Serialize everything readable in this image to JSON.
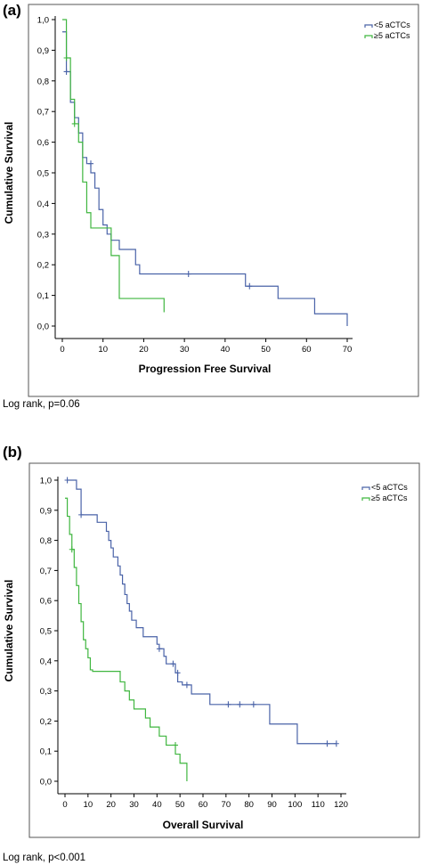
{
  "panels": {
    "a": {
      "label": "(a)",
      "note": "Log rank, p=0.06"
    },
    "b": {
      "label": "(b)",
      "note": "Log rank, p<0.001"
    }
  },
  "colors": {
    "low": "#4a63a8",
    "high": "#3fb63f",
    "axis": "#000000",
    "frame": "#555555"
  },
  "chart_data": [
    {
      "type": "line",
      "title": "",
      "xlabel": "Progression Free Survival",
      "ylabel": "Cumulative Survival",
      "xlim": [
        0,
        70
      ],
      "ylim": [
        0,
        1
      ],
      "xticks": [
        "0",
        "10",
        "20",
        "30",
        "40",
        "50",
        "60",
        "70"
      ],
      "yticks": [
        "0,0",
        "0,1",
        "0,2",
        "0,3",
        "0,4",
        "0,5",
        "0,6",
        "0,7",
        "0,8",
        "0,9",
        "1,0"
      ],
      "legend": "top-right",
      "series": [
        {
          "name": "<5 aCTCs",
          "x": [
            0,
            1,
            2,
            3,
            4,
            5,
            6,
            7,
            8,
            9,
            10,
            11,
            12,
            14,
            15,
            18,
            19,
            45,
            53,
            62,
            70
          ],
          "y": [
            0.96,
            0.83,
            0.73,
            0.68,
            0.63,
            0.55,
            0.53,
            0.5,
            0.45,
            0.38,
            0.33,
            0.3,
            0.28,
            0.25,
            0.25,
            0.2,
            0.17,
            0.13,
            0.09,
            0.04,
            0.0
          ],
          "censored": [
            [
              1,
              0.83
            ],
            [
              7,
              0.53
            ],
            [
              31,
              0.17
            ],
            [
              46,
              0.13
            ]
          ]
        },
        {
          "name": "≥5 aCTCs",
          "x": [
            0,
            1,
            2,
            3,
            4,
            5,
            6,
            7,
            12,
            14,
            25
          ],
          "y": [
            1.0,
            0.875,
            0.74,
            0.66,
            0.6,
            0.47,
            0.37,
            0.32,
            0.23,
            0.09,
            0.045
          ],
          "censored": [
            [
              1,
              0.875
            ],
            [
              3,
              0.66
            ]
          ]
        }
      ]
    },
    {
      "type": "line",
      "title": "",
      "xlabel": "Overall Survival",
      "ylabel": "Cumulative Survival",
      "xlim": [
        0,
        120
      ],
      "ylim": [
        0,
        1
      ],
      "xticks": [
        "0",
        "10",
        "20",
        "30",
        "40",
        "50",
        "60",
        "70",
        "80",
        "90",
        "100",
        "110",
        "120"
      ],
      "yticks": [
        "0,0",
        "0,1",
        "0,2",
        "0,3",
        "0,4",
        "0,5",
        "0,6",
        "0,7",
        "0,8",
        "0,9",
        "1,0"
      ],
      "legend": "top-right",
      "series": [
        {
          "name": "<5 aCTCs",
          "x": [
            1,
            5,
            7,
            14,
            18,
            19,
            20,
            21,
            23,
            24,
            25,
            26,
            27,
            28,
            29,
            31,
            34,
            40,
            41,
            43,
            44,
            48,
            49,
            51,
            55,
            63,
            89,
            101,
            118
          ],
          "y": [
            1.0,
            0.97,
            0.885,
            0.86,
            0.83,
            0.8,
            0.775,
            0.745,
            0.715,
            0.685,
            0.655,
            0.62,
            0.59,
            0.565,
            0.535,
            0.51,
            0.48,
            0.455,
            0.44,
            0.415,
            0.39,
            0.36,
            0.33,
            0.32,
            0.29,
            0.255,
            0.19,
            0.125,
            0.125
          ],
          "censored": [
            [
              1,
              1.0
            ],
            [
              7,
              0.885
            ],
            [
              41,
              0.44
            ],
            [
              47,
              0.39
            ],
            [
              49,
              0.36
            ],
            [
              53,
              0.32
            ],
            [
              71,
              0.255
            ],
            [
              76,
              0.255
            ],
            [
              82,
              0.255
            ],
            [
              114,
              0.125
            ],
            [
              118,
              0.125
            ]
          ]
        },
        {
          "name": "≥5 aCTCs",
          "x": [
            0,
            1,
            2,
            3,
            4,
            5,
            6,
            7,
            8,
            9,
            10,
            11,
            12,
            24,
            26,
            28,
            30,
            35,
            37,
            41,
            44,
            48,
            50,
            53
          ],
          "y": [
            0.94,
            0.88,
            0.82,
            0.77,
            0.71,
            0.65,
            0.59,
            0.53,
            0.47,
            0.44,
            0.41,
            0.37,
            0.365,
            0.33,
            0.3,
            0.27,
            0.24,
            0.21,
            0.18,
            0.15,
            0.12,
            0.09,
            0.06,
            0.0
          ],
          "censored": [
            [
              3,
              0.77
            ],
            [
              48,
              0.12
            ]
          ]
        }
      ]
    }
  ]
}
